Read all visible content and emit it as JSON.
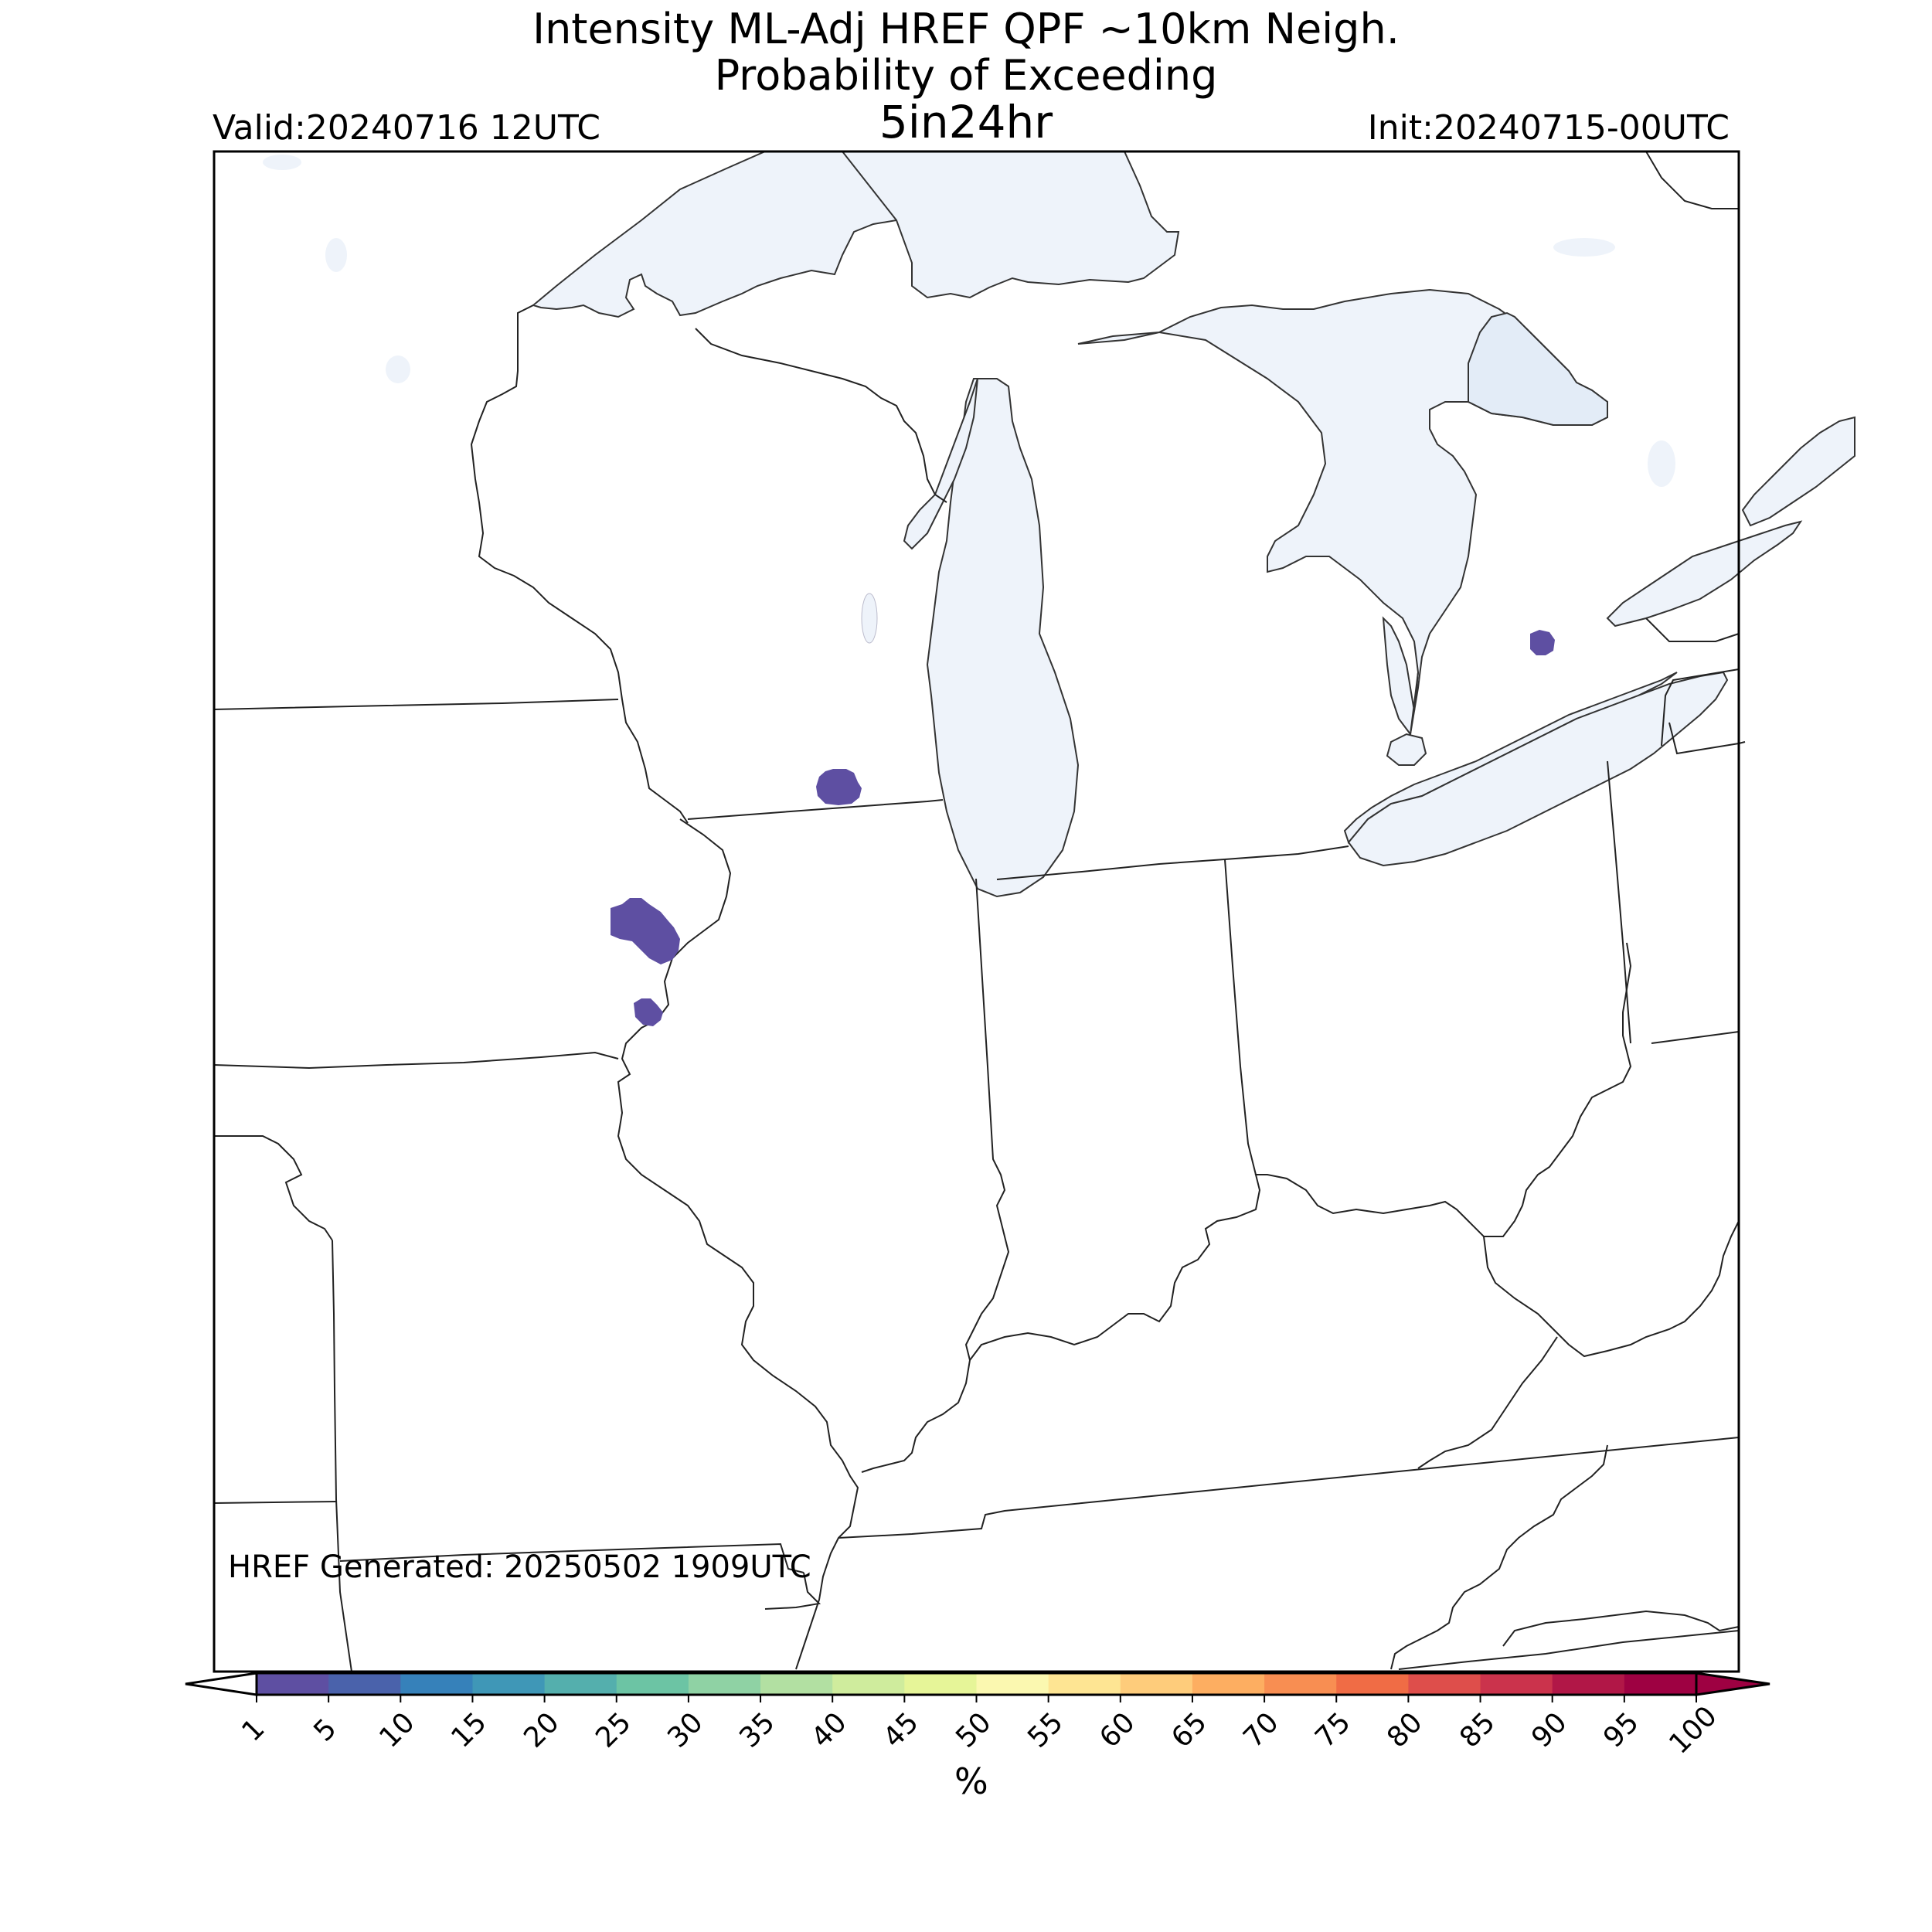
{
  "header": {
    "title_line1": "Intensity ML-Adj HREF QPF ~10km Neigh.",
    "title_line2": "Probability of Exceeding",
    "title_line3": "5in24hr",
    "valid": "Valid:20240716 12UTC",
    "init": "Init:20240715-00UTC"
  },
  "footer": {
    "generated": "HREF Generated: 20250502 1909UTC"
  },
  "colorbar": {
    "label": "%",
    "ticks": [
      "1",
      "5",
      "10",
      "15",
      "20",
      "25",
      "30",
      "35",
      "40",
      "45",
      "50",
      "55",
      "60",
      "65",
      "70",
      "75",
      "80",
      "85",
      "90",
      "95",
      "100"
    ],
    "colors": [
      "#5e4fa2",
      "#4a62ab",
      "#3681ba",
      "#3f97b7",
      "#54afad",
      "#6cc4a4",
      "#8fd2a4",
      "#b2e0a2",
      "#cfec9d",
      "#e6f598",
      "#fbf8b0",
      "#fee593",
      "#fecc7b",
      "#fdae61",
      "#f88e52",
      "#f06c45",
      "#de4e4b",
      "#cb334c",
      "#b11747",
      "#9e0142"
    ],
    "under_color": "#ffffff",
    "over_color": "#9e0142"
  },
  "map": {
    "lake_fill": "#eef3fa",
    "probability_fill": "#5e4fa2",
    "regions": [
      "Lake Superior",
      "Lake Michigan",
      "Lake Huron",
      "Lake Erie",
      "Lake Ontario",
      "Wisconsin",
      "Michigan",
      "Iowa",
      "Illinois",
      "Indiana",
      "Ohio",
      "Missouri",
      "Kentucky",
      "Tennessee",
      "West Virginia",
      "Pennsylvania",
      "Ontario"
    ]
  }
}
